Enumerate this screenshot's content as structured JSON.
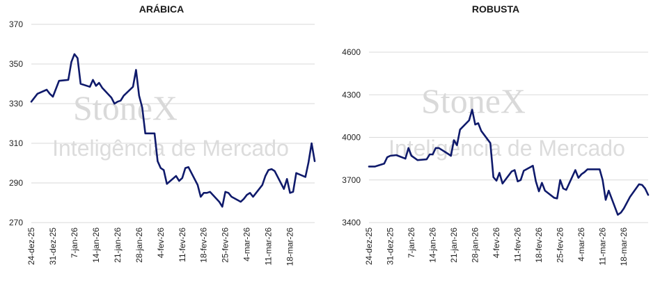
{
  "watermark": {
    "brand": "StoneX",
    "tagline": "Inteligência de Mercado"
  },
  "colors": {
    "line": "#0f1a6b",
    "grid": "#d9d9d9",
    "watermark": "#d9d9d9"
  },
  "chart_data": [
    {
      "type": "line",
      "title": "ARÁBICA",
      "ylim": [
        270,
        370
      ],
      "yticks": [
        270,
        290,
        310,
        330,
        350,
        370
      ],
      "grid": "horizontal",
      "xlim": [
        "2025-12-24",
        "2026-03-26"
      ],
      "xtick_labels": [
        "24-dez-25",
        "31-dez-25",
        "7-jan-26",
        "14-jan-26",
        "21-jan-26",
        "28-jan-26",
        "4-fev-26",
        "11-fev-26",
        "18-fev-26",
        "25-fev-26",
        "4-mar-26",
        "11-mar-26",
        "18-mar-26"
      ],
      "xtick_dates": [
        "2025-12-24",
        "2025-12-31",
        "2026-01-07",
        "2026-01-14",
        "2026-01-21",
        "2026-01-28",
        "2026-02-04",
        "2026-02-11",
        "2026-02-18",
        "2026-02-25",
        "2026-03-04",
        "2026-03-11",
        "2026-03-18"
      ],
      "series": [
        {
          "x": [
            "2025-12-24",
            "2025-12-26",
            "2025-12-29",
            "2025-12-30",
            "2025-12-31",
            "2026-01-02",
            "2026-01-05",
            "2026-01-06",
            "2026-01-07",
            "2026-01-08",
            "2026-01-09",
            "2026-01-12",
            "2026-01-13",
            "2026-01-14",
            "2026-01-15",
            "2026-01-16",
            "2026-01-19",
            "2026-01-20",
            "2026-01-21",
            "2026-01-22",
            "2026-01-23",
            "2026-01-26",
            "2026-01-27",
            "2026-01-28",
            "2026-01-29",
            "2026-01-30",
            "2026-02-02",
            "2026-02-03",
            "2026-02-04",
            "2026-02-05",
            "2026-02-06",
            "2026-02-09",
            "2026-02-10",
            "2026-02-11",
            "2026-02-12",
            "2026-02-13",
            "2026-02-16",
            "2026-02-17",
            "2026-02-18",
            "2026-02-19",
            "2026-02-20",
            "2026-02-23",
            "2026-02-24",
            "2026-02-25",
            "2026-02-26",
            "2026-02-27",
            "2026-03-02",
            "2026-03-03",
            "2026-03-04",
            "2026-03-05",
            "2026-03-06",
            "2026-03-09",
            "2026-03-10",
            "2026-03-11",
            "2026-03-12",
            "2026-03-13",
            "2026-03-16",
            "2026-03-17",
            "2026-03-18",
            "2026-03-19",
            "2026-03-20",
            "2026-03-23",
            "2026-03-24",
            "2026-03-25",
            "2026-03-26"
          ],
          "values": [
            331,
            335,
            337,
            335,
            333.5,
            341.5,
            342,
            351,
            355,
            353,
            340,
            338.5,
            342,
            339,
            340.5,
            338,
            333,
            330,
            331,
            331.5,
            334,
            338.5,
            347,
            334,
            328,
            315,
            315,
            301,
            297.5,
            296.5,
            289.5,
            293.5,
            291,
            292.5,
            297.5,
            298,
            289,
            283,
            285,
            285,
            285.5,
            280.5,
            278,
            285.5,
            285,
            283,
            280.5,
            282,
            284,
            285,
            283,
            289,
            293.5,
            296.5,
            297,
            296,
            287,
            292,
            285,
            285.5,
            295,
            293,
            300.5,
            310,
            301
          ]
        }
      ]
    },
    {
      "type": "line",
      "title": "ROBUSTA",
      "ylim": [
        3400,
        4600
      ],
      "yticks": [
        3400,
        3700,
        4000,
        4300,
        4600
      ],
      "grid": "horizontal",
      "xlim": [
        "2025-12-24",
        "2026-03-26"
      ],
      "xtick_labels": [
        "24-dez-25",
        "31-dez-25",
        "7-jan-26",
        "14-jan-26",
        "21-jan-26",
        "28-jan-26",
        "4-fev-26",
        "11-fev-26",
        "18-fev-26",
        "25-fev-26",
        "4-mar-26",
        "11-mar-26",
        "18-mar-26"
      ],
      "xtick_dates": [
        "2025-12-24",
        "2025-12-31",
        "2026-01-07",
        "2026-01-14",
        "2026-01-21",
        "2026-01-28",
        "2026-02-04",
        "2026-02-11",
        "2026-02-18",
        "2026-02-25",
        "2026-03-04",
        "2026-03-11",
        "2026-03-18"
      ],
      "series": [
        {
          "x": [
            "2025-12-24",
            "2025-12-26",
            "2025-12-29",
            "2025-12-30",
            "2025-12-31",
            "2026-01-02",
            "2026-01-05",
            "2026-01-06",
            "2026-01-07",
            "2026-01-08",
            "2026-01-09",
            "2026-01-12",
            "2026-01-13",
            "2026-01-14",
            "2026-01-15",
            "2026-01-16",
            "2026-01-19",
            "2026-01-20",
            "2026-01-21",
            "2026-01-22",
            "2026-01-23",
            "2026-01-26",
            "2026-01-27",
            "2026-01-28",
            "2026-01-29",
            "2026-01-30",
            "2026-02-02",
            "2026-02-03",
            "2026-02-04",
            "2026-02-05",
            "2026-02-06",
            "2026-02-09",
            "2026-02-10",
            "2026-02-11",
            "2026-02-12",
            "2026-02-13",
            "2026-02-16",
            "2026-02-17",
            "2026-02-18",
            "2026-02-19",
            "2026-02-20",
            "2026-02-23",
            "2026-02-24",
            "2026-02-25",
            "2026-02-26",
            "2026-02-27",
            "2026-03-02",
            "2026-03-03",
            "2026-03-04",
            "2026-03-05",
            "2026-03-06",
            "2026-03-09",
            "2026-03-10",
            "2026-03-11",
            "2026-03-12",
            "2026-03-13",
            "2026-03-16",
            "2026-03-17",
            "2026-03-18",
            "2026-03-19",
            "2026-03-20",
            "2026-03-23",
            "2026-03-24",
            "2026-03-25",
            "2026-03-26"
          ],
          "values": [
            3795,
            3795,
            3815,
            3860,
            3870,
            3875,
            3850,
            3925,
            3870,
            3855,
            3840,
            3845,
            3880,
            3880,
            3925,
            3925,
            3885,
            3870,
            3980,
            3945,
            4055,
            4120,
            4195,
            4090,
            4100,
            4045,
            3960,
            3720,
            3695,
            3750,
            3675,
            3760,
            3770,
            3690,
            3700,
            3765,
            3800,
            3690,
            3620,
            3680,
            3625,
            3575,
            3570,
            3700,
            3640,
            3630,
            3770,
            3715,
            3740,
            3755,
            3775,
            3775,
            3775,
            3700,
            3560,
            3625,
            3455,
            3470,
            3500,
            3540,
            3580,
            3670,
            3665,
            3640,
            3595
          ]
        }
      ]
    }
  ]
}
